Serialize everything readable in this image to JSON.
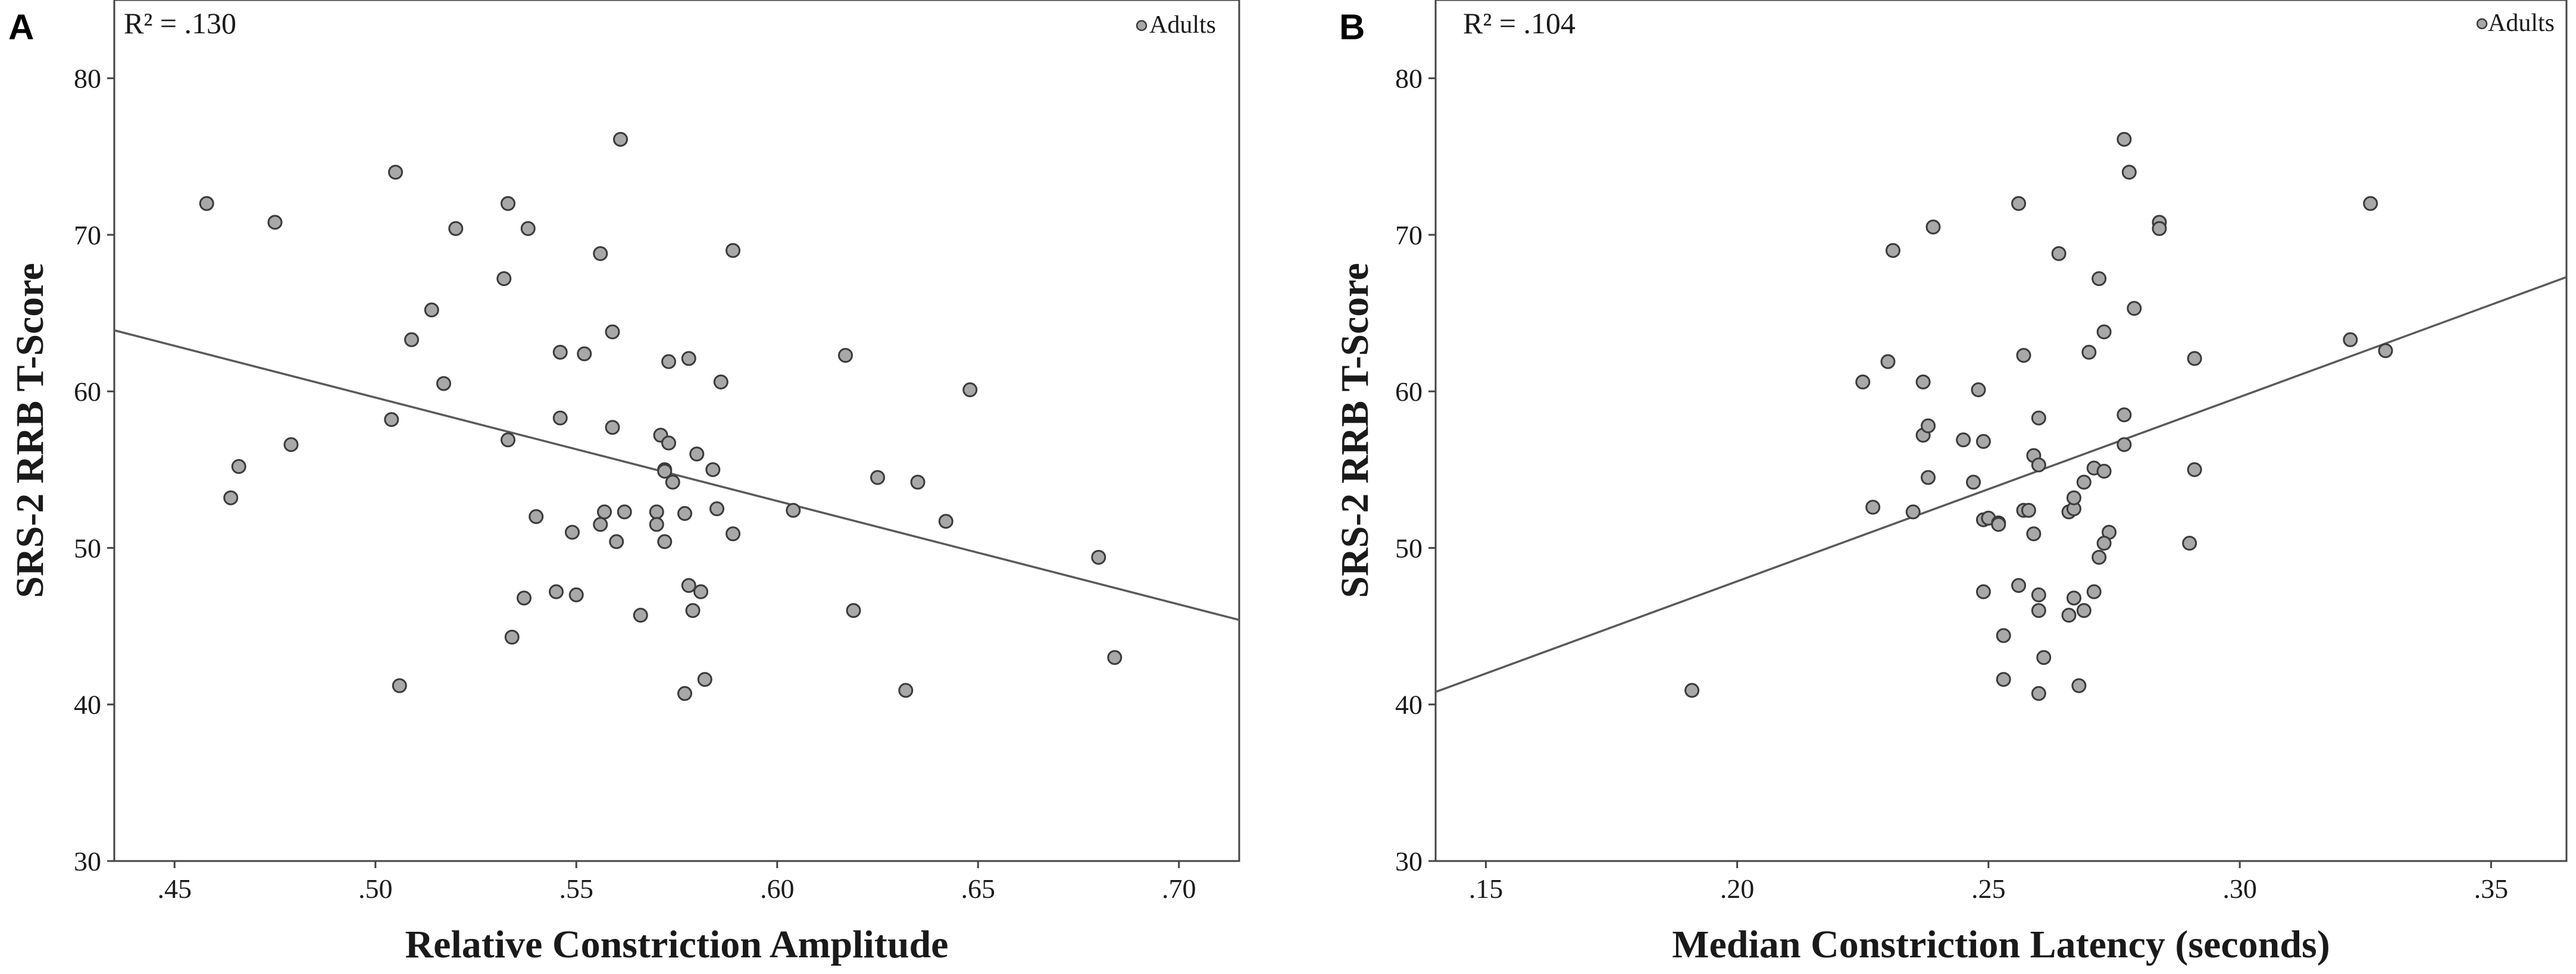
{
  "chart_data": [
    {
      "type": "scatter",
      "panel": "A",
      "r_squared_label": "R² = .130",
      "legend": "Adults",
      "legend_position": "top-right",
      "xlabel": "Relative Constriction Amplitude",
      "ylabel": "SRS-2 RRB T-Score",
      "xlim": [
        0.435,
        0.715
      ],
      "ylim": [
        30,
        85
      ],
      "x_ticks": [
        0.45,
        0.5,
        0.55,
        0.6,
        0.65,
        0.7
      ],
      "x_tick_labels": [
        ".45",
        ".50",
        ".55",
        ".60",
        ".65",
        ".70"
      ],
      "y_ticks": [
        30,
        40,
        50,
        60,
        70,
        80
      ],
      "y_tick_labels": [
        "30",
        "40",
        "50",
        "60",
        "70",
        "80"
      ],
      "fit_line": {
        "x": [
          0.435,
          0.715
        ],
        "y": [
          63.9,
          45.4
        ]
      },
      "points": [
        [
          0.458,
          72.0
        ],
        [
          0.475,
          70.8
        ],
        [
          0.464,
          53.2
        ],
        [
          0.466,
          55.2
        ],
        [
          0.479,
          56.6
        ],
        [
          0.505,
          74.0
        ],
        [
          0.504,
          58.2
        ],
        [
          0.506,
          41.2
        ],
        [
          0.509,
          63.3
        ],
        [
          0.514,
          65.2
        ],
        [
          0.517,
          60.5
        ],
        [
          0.52,
          70.4
        ],
        [
          0.533,
          72.0
        ],
        [
          0.538,
          70.4
        ],
        [
          0.532,
          67.2
        ],
        [
          0.533,
          56.9
        ],
        [
          0.534,
          44.3
        ],
        [
          0.537,
          46.8
        ],
        [
          0.54,
          52.0
        ],
        [
          0.546,
          62.5
        ],
        [
          0.552,
          62.4
        ],
        [
          0.546,
          58.3
        ],
        [
          0.545,
          47.2
        ],
        [
          0.549,
          51.0
        ],
        [
          0.55,
          47.0
        ],
        [
          0.561,
          76.1
        ],
        [
          0.556,
          68.8
        ],
        [
          0.559,
          63.8
        ],
        [
          0.559,
          57.7
        ],
        [
          0.557,
          52.3
        ],
        [
          0.556,
          51.5
        ],
        [
          0.56,
          50.4
        ],
        [
          0.562,
          52.3
        ],
        [
          0.566,
          45.7
        ],
        [
          0.571,
          57.2
        ],
        [
          0.573,
          61.9
        ],
        [
          0.573,
          56.7
        ],
        [
          0.572,
          55.0
        ],
        [
          0.572,
          54.9
        ],
        [
          0.574,
          54.2
        ],
        [
          0.57,
          52.3
        ],
        [
          0.57,
          51.5
        ],
        [
          0.572,
          50.4
        ],
        [
          0.578,
          62.1
        ],
        [
          0.58,
          56.0
        ],
        [
          0.577,
          52.2
        ],
        [
          0.578,
          47.6
        ],
        [
          0.579,
          46.0
        ],
        [
          0.581,
          47.2
        ],
        [
          0.577,
          40.7
        ],
        [
          0.582,
          41.6
        ],
        [
          0.586,
          60.6
        ],
        [
          0.584,
          55.0
        ],
        [
          0.585,
          52.5
        ],
        [
          0.589,
          69.0
        ],
        [
          0.589,
          50.9
        ],
        [
          0.604,
          52.4
        ],
        [
          0.617,
          62.3
        ],
        [
          0.619,
          46.0
        ],
        [
          0.625,
          54.5
        ],
        [
          0.632,
          40.9
        ],
        [
          0.635,
          54.2
        ],
        [
          0.642,
          51.7
        ],
        [
          0.648,
          60.1
        ],
        [
          0.68,
          49.4
        ],
        [
          0.684,
          43.0
        ]
      ]
    },
    {
      "type": "scatter",
      "panel": "B",
      "r_squared_label": "R² = .104",
      "legend": "Adults",
      "legend_position": "top-right",
      "xlabel": "Median Constriction Latency (seconds)",
      "ylabel": "SRS-2 RRB T-Score",
      "xlim": [
        0.14,
        0.365
      ],
      "ylim": [
        30,
        85
      ],
      "x_ticks": [
        0.15,
        0.2,
        0.25,
        0.3,
        0.35
      ],
      "x_tick_labels": [
        ".15",
        ".20",
        ".25",
        ".30",
        ".35"
      ],
      "y_ticks": [
        30,
        40,
        50,
        60,
        70,
        80
      ],
      "y_tick_labels": [
        "30",
        "40",
        "50",
        "60",
        "70",
        "80"
      ],
      "fit_line": {
        "x": [
          0.14,
          0.365
        ],
        "y": [
          40.8,
          67.3
        ]
      },
      "points": [
        [
          0.191,
          40.9
        ],
        [
          0.225,
          60.6
        ],
        [
          0.227,
          52.6
        ],
        [
          0.23,
          61.9
        ],
        [
          0.231,
          69.0
        ],
        [
          0.235,
          52.3
        ],
        [
          0.237,
          60.6
        ],
        [
          0.237,
          57.2
        ],
        [
          0.238,
          57.8
        ],
        [
          0.238,
          54.5
        ],
        [
          0.239,
          70.5
        ],
        [
          0.245,
          56.9
        ],
        [
          0.247,
          54.2
        ],
        [
          0.248,
          60.1
        ],
        [
          0.249,
          56.8
        ],
        [
          0.249,
          51.8
        ],
        [
          0.25,
          51.9
        ],
        [
          0.252,
          51.6
        ],
        [
          0.252,
          51.5
        ],
        [
          0.249,
          47.2
        ],
        [
          0.253,
          44.4
        ],
        [
          0.253,
          41.6
        ],
        [
          0.256,
          72.0
        ],
        [
          0.257,
          62.3
        ],
        [
          0.257,
          52.4
        ],
        [
          0.258,
          52.4
        ],
        [
          0.256,
          47.6
        ],
        [
          0.259,
          55.9
        ],
        [
          0.26,
          55.3
        ],
        [
          0.26,
          58.3
        ],
        [
          0.259,
          50.9
        ],
        [
          0.26,
          47.0
        ],
        [
          0.26,
          46.0
        ],
        [
          0.261,
          43.0
        ],
        [
          0.26,
          40.7
        ],
        [
          0.264,
          68.8
        ],
        [
          0.266,
          52.3
        ],
        [
          0.267,
          52.5
        ],
        [
          0.267,
          53.2
        ],
        [
          0.266,
          45.7
        ],
        [
          0.267,
          46.8
        ],
        [
          0.268,
          41.2
        ],
        [
          0.269,
          54.2
        ],
        [
          0.27,
          62.5
        ],
        [
          0.271,
          55.1
        ],
        [
          0.271,
          47.2
        ],
        [
          0.272,
          49.4
        ],
        [
          0.272,
          67.2
        ],
        [
          0.273,
          63.8
        ],
        [
          0.273,
          54.9
        ],
        [
          0.274,
          51.0
        ],
        [
          0.273,
          50.3
        ],
        [
          0.269,
          46.0
        ],
        [
          0.277,
          76.1
        ],
        [
          0.277,
          58.5
        ],
        [
          0.277,
          56.6
        ],
        [
          0.278,
          74.0
        ],
        [
          0.279,
          65.3
        ],
        [
          0.284,
          70.8
        ],
        [
          0.284,
          70.4
        ],
        [
          0.29,
          50.3
        ],
        [
          0.291,
          62.1
        ],
        [
          0.291,
          55.0
        ],
        [
          0.322,
          63.3
        ],
        [
          0.326,
          72.0
        ],
        [
          0.329,
          62.6
        ]
      ]
    }
  ]
}
